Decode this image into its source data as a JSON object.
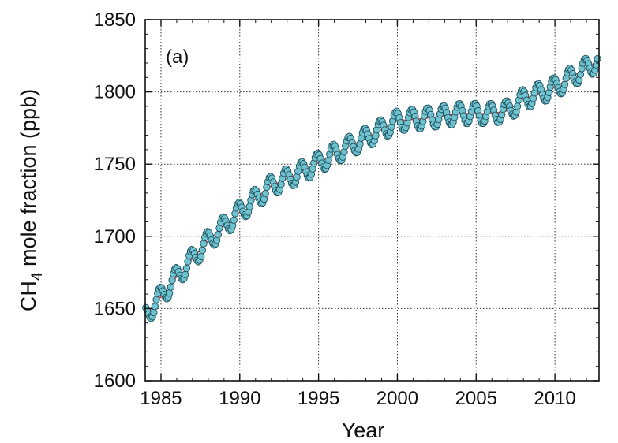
{
  "chart_data": {
    "type": "line",
    "panel_label": "(a)",
    "xlabel": "Year",
    "ylabel_prefix": "CH",
    "ylabel_subscript": "4",
    "ylabel_suffix": " mole fraction (ppb)",
    "xlim": [
      1984,
      2012.8
    ],
    "ylim": [
      1600,
      1850
    ],
    "xticks": [
      1985,
      1990,
      1995,
      2000,
      2005,
      2010
    ],
    "xtick_labels": [
      "1985",
      "1990",
      "1995",
      "2000",
      "2005",
      "2010"
    ],
    "yticks": [
      1600,
      1650,
      1700,
      1750,
      1800,
      1850
    ],
    "ytick_labels": [
      "1600",
      "1650",
      "1700",
      "1750",
      "1800",
      "1850"
    ],
    "grid": true,
    "grid_style": "dotted",
    "colors": {
      "marker_fill": "#6fc3cf",
      "marker_stroke": "#1f4f5f",
      "trend": "#e04a4a",
      "grid": "#333333",
      "axis": "#111111"
    },
    "series": [
      {
        "name": "trend",
        "style": "line",
        "x": [
          1984.0,
          1986.0,
          1988.0,
          1990.0,
          1992.0,
          1994.0,
          1996.0,
          1998.0,
          2000.0,
          2002.0,
          2004.0,
          2006.0,
          2007.0,
          2008.0,
          2010.0,
          2012.8
        ],
        "y": [
          1645,
          1672,
          1697,
          1717,
          1735,
          1745,
          1757,
          1768,
          1780,
          1782,
          1785,
          1785,
          1787,
          1795,
          1803,
          1822
        ]
      },
      {
        "name": "monthly",
        "style": "markers",
        "seasonal_amplitude": 7,
        "x": [],
        "y": []
      }
    ]
  }
}
